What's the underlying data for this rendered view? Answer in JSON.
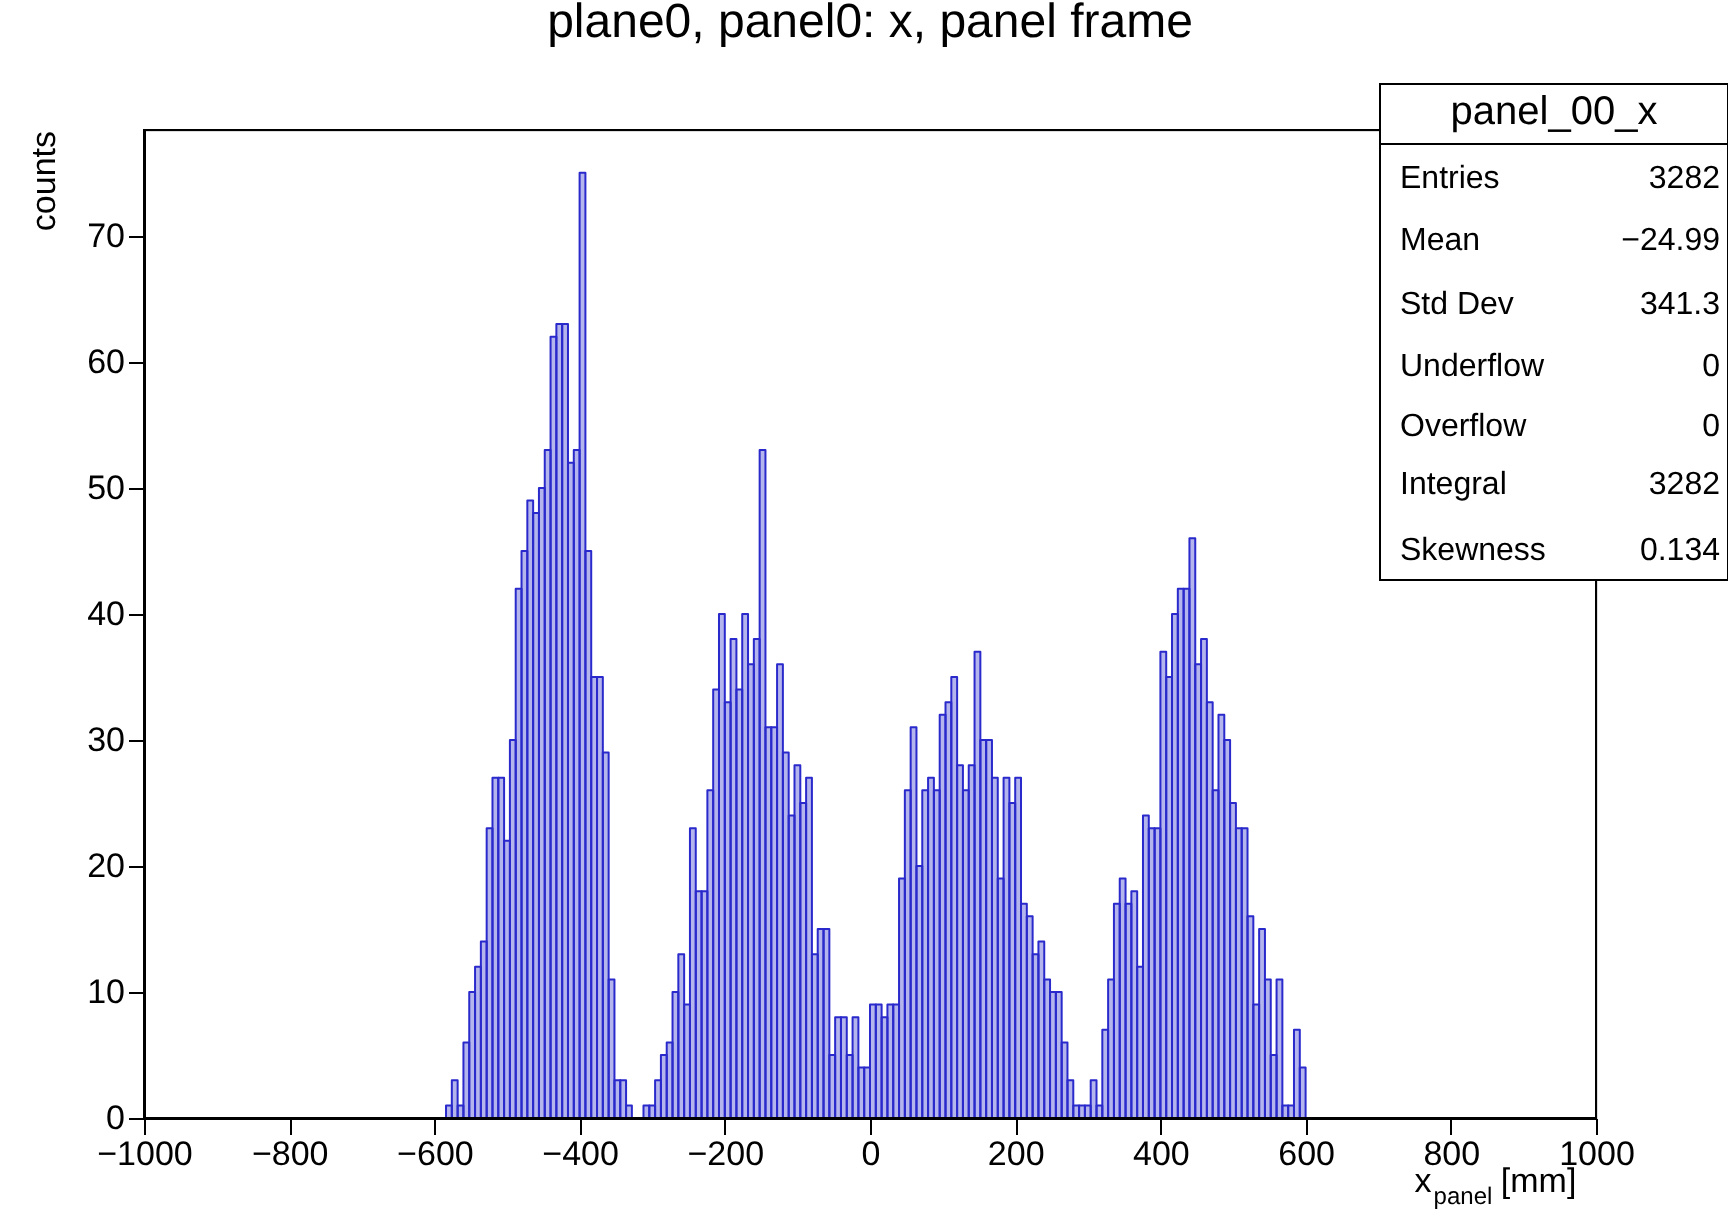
{
  "chart_data": {
    "type": "histogram",
    "title": "plane0, panel0: x, panel frame",
    "xlabel": "x$_{panel}$ [mm]",
    "ylabel": "counts",
    "bins": [
      -584,
      -576,
      -568,
      -560,
      -552,
      -544,
      -536,
      -528,
      -520,
      -512,
      -504,
      -496,
      -488,
      -480,
      -472,
      -464,
      -456,
      -448,
      -440,
      -432,
      -424,
      -416,
      -408,
      -400,
      -392,
      -384,
      -376,
      -368,
      -360,
      -352,
      -344,
      -336,
      -328,
      -320,
      -312,
      -304,
      -296,
      -288,
      -280,
      -272,
      -264,
      -256,
      -248,
      -240,
      -232,
      -224,
      -216,
      -208,
      -200,
      -192,
      -184,
      -176,
      -168,
      -160,
      -152,
      -144,
      -136,
      -128,
      -120,
      -112,
      -104,
      -96,
      -88,
      -80,
      -72,
      -64,
      -56,
      -48,
      -40,
      -32,
      -24,
      -16,
      -8,
      0,
      8,
      16,
      24,
      32,
      40,
      48,
      56,
      64,
      72,
      80,
      88,
      96,
      104,
      112,
      120,
      128,
      136,
      144,
      152,
      160,
      168,
      176,
      184,
      192,
      200,
      208,
      216,
      224,
      232,
      240,
      248,
      256,
      264,
      272,
      280,
      288,
      296,
      304,
      312,
      320,
      328,
      336,
      344,
      352,
      360,
      368,
      376,
      384,
      392,
      400,
      408,
      416,
      424,
      432,
      440,
      448,
      456,
      464,
      472,
      480,
      488,
      496,
      504,
      512,
      520,
      528,
      536,
      544,
      552,
      560,
      568,
      576,
      584,
      592,
      600
    ],
    "values": [
      1,
      3,
      1,
      6,
      10,
      12,
      14,
      23,
      27,
      27,
      22,
      30,
      42,
      45,
      49,
      48,
      50,
      53,
      62,
      63,
      63,
      52,
      53,
      75,
      45,
      35,
      35,
      29,
      11,
      3,
      3,
      1,
      0,
      0,
      1,
      1,
      3,
      5,
      6,
      10,
      13,
      9,
      23,
      18,
      18,
      26,
      34,
      40,
      33,
      38,
      34,
      40,
      36,
      38,
      53,
      31,
      31,
      36,
      29,
      24,
      28,
      25,
      27,
      13,
      15,
      15,
      5,
      8,
      8,
      5,
      8,
      4,
      4,
      9,
      9,
      8,
      9,
      9,
      19,
      26,
      31,
      20,
      26,
      27,
      26,
      32,
      33,
      35,
      28,
      26,
      28,
      37,
      30,
      30,
      27,
      19,
      27,
      25,
      27,
      17,
      16,
      13,
      14,
      11,
      10,
      10,
      6,
      3,
      1,
      1,
      1,
      3,
      1,
      7,
      11,
      17,
      19,
      17,
      18,
      12,
      24,
      23,
      23,
      37,
      35,
      40,
      42,
      42,
      46,
      36,
      38,
      33,
      26,
      32,
      30,
      25,
      23,
      23,
      16,
      9,
      15,
      11,
      5,
      11,
      1,
      1,
      7,
      4
    ],
    "color": "#2a2acc",
    "xlim": [
      -1000,
      1000
    ],
    "xticks": [
      -1000,
      -800,
      -600,
      -400,
      -200,
      0,
      200,
      400,
      600,
      800,
      1000
    ],
    "ylim": [
      0,
      78.4
    ],
    "yticks": [
      0,
      10,
      20,
      30,
      40,
      50,
      60,
      70
    ],
    "grid": false,
    "annotations": [
      "panel_00_x",
      "Entries",
      "3282",
      "Mean",
      "−24.99",
      "Std Dev",
      "341.3",
      "Underflow",
      "0",
      "Overflow",
      "0",
      "Integral",
      "3282",
      "Skewness",
      "0.134"
    ]
  }
}
